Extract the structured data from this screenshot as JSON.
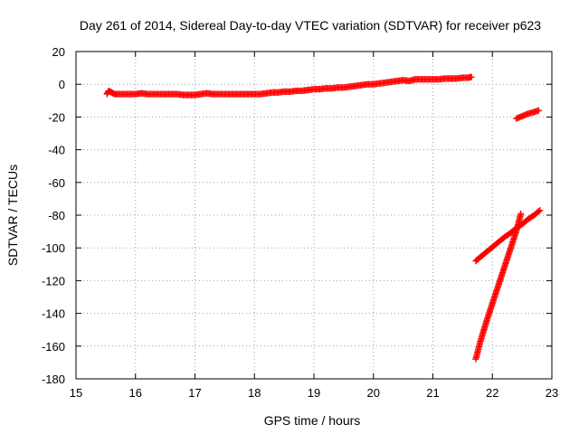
{
  "chart_data": {
    "type": "scatter",
    "title": "Day 261 of 2014, Sidereal Day-to-day VTEC variation (SDTVAR) for receiver p623",
    "xlabel": "GPS time / hours",
    "ylabel": "SDTVAR / TECUs",
    "xlim": [
      15,
      23
    ],
    "ylim": [
      -180,
      20
    ],
    "xticks": [
      15,
      16,
      17,
      18,
      19,
      20,
      21,
      22,
      23
    ],
    "yticks": [
      -180,
      -160,
      -140,
      -120,
      -100,
      -80,
      -60,
      -40,
      -20,
      0,
      20
    ],
    "grid": true,
    "marker": "+",
    "color": "#ff0000",
    "series": [
      {
        "x": [
          15.52,
          15.55,
          15.6,
          15.65,
          15.7,
          15.8,
          15.9,
          16.0,
          16.1,
          16.2,
          16.3,
          16.4,
          16.5,
          16.6,
          16.7,
          16.8,
          16.9,
          17.0,
          17.1,
          17.2,
          17.3,
          17.4,
          17.5,
          17.6,
          17.7,
          17.8,
          17.9,
          18.0,
          18.1,
          18.2,
          18.3,
          18.4,
          18.5,
          18.6,
          18.7,
          18.8,
          18.9,
          19.0,
          19.1,
          19.2,
          19.3,
          19.4,
          19.5,
          19.6,
          19.7,
          19.8,
          19.9,
          20.0,
          20.1,
          20.2,
          20.3,
          20.4,
          20.5,
          20.6,
          20.7,
          20.8,
          20.9,
          21.0,
          21.1,
          21.2,
          21.3,
          21.4,
          21.5,
          21.6,
          21.65
        ],
        "y": [
          -6,
          -4,
          -5,
          -6,
          -6,
          -6,
          -6,
          -6,
          -5.5,
          -6,
          -6,
          -6,
          -6,
          -6,
          -6,
          -6.5,
          -6.5,
          -6.5,
          -6,
          -5.5,
          -6,
          -6,
          -6,
          -6,
          -6,
          -6,
          -6,
          -6,
          -6,
          -5.5,
          -5,
          -5,
          -4.5,
          -4.5,
          -4,
          -4,
          -3.5,
          -3,
          -3,
          -2.5,
          -2.5,
          -2,
          -2,
          -1.5,
          -1,
          -0.5,
          0,
          0,
          0.5,
          1,
          1.5,
          2,
          2.5,
          2,
          3,
          3,
          3,
          3,
          3,
          3.5,
          3.5,
          3.5,
          4,
          4,
          4.5
        ]
      },
      {
        "x": [
          22.4,
          22.5,
          22.6,
          22.7,
          22.78
        ],
        "y": [
          -21,
          -19.5,
          -18,
          -17,
          -16
        ]
      },
      {
        "x": [
          21.72,
          21.8,
          21.9,
          22.0,
          22.1,
          22.2,
          22.3,
          22.4,
          22.5,
          22.6,
          22.7,
          22.8
        ],
        "y": [
          -108,
          -105.5,
          -102.5,
          -99.5,
          -96.5,
          -93.5,
          -91,
          -88,
          -85.5,
          -82.5,
          -80,
          -77
        ]
      },
      {
        "x": [
          21.72,
          21.8,
          21.9,
          22.0,
          22.1,
          22.2,
          22.3,
          22.4,
          22.48
        ],
        "y": [
          -168,
          -157,
          -145,
          -134,
          -123,
          -112,
          -101,
          -90,
          -79
        ]
      }
    ]
  }
}
